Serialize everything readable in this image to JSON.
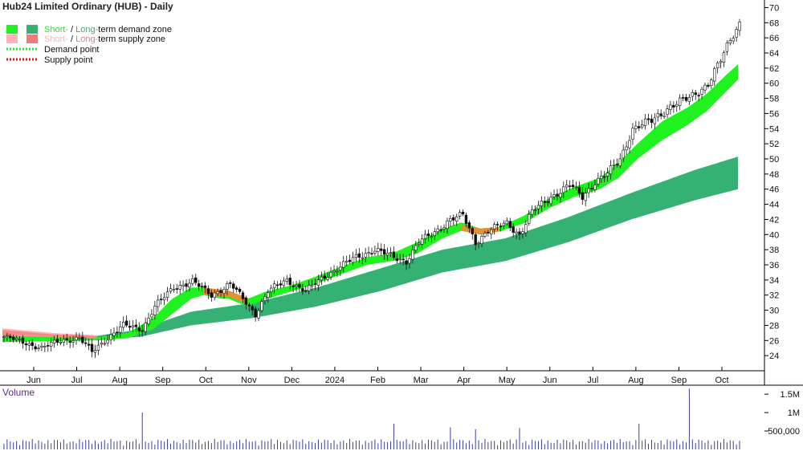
{
  "chart_data": {
    "type": "candlestick",
    "title": "Hub24 Limited Ordinary (HUB) - Daily",
    "legend": {
      "demand": {
        "short": "Short-",
        "sep": " / ",
        "long": "Long-",
        "rest": "term demand zone"
      },
      "supply": {
        "short": "Short-",
        "sep": " / ",
        "long": "Long-",
        "rest": "term supply zone"
      },
      "demand_point": "Demand point",
      "supply_point": "Supply point",
      "placement": "top-left"
    },
    "x_ticks": [
      "Jun",
      "Jul",
      "Aug",
      "Sep",
      "Oct",
      "Nov",
      "Dec",
      "2024",
      "Feb",
      "Mar",
      "Apr",
      "May",
      "Jun",
      "Jul",
      "Aug",
      "Sep",
      "Oct"
    ],
    "y_ticks": [
      24,
      26,
      28,
      30,
      32,
      34,
      36,
      38,
      40,
      42,
      44,
      46,
      48,
      50,
      52,
      54,
      56,
      58,
      60,
      62,
      64,
      66,
      68,
      70
    ],
    "ylim": [
      22,
      71
    ],
    "price_path": [
      [
        0,
        26.5
      ],
      [
        6,
        25.8
      ],
      [
        12,
        25
      ],
      [
        18,
        26
      ],
      [
        24,
        26.3
      ],
      [
        28,
        24.5
      ],
      [
        32,
        26
      ],
      [
        38,
        28
      ],
      [
        44,
        27.5
      ],
      [
        48,
        30.5
      ],
      [
        54,
        33
      ],
      [
        60,
        33.8
      ],
      [
        66,
        32
      ],
      [
        72,
        33.5
      ],
      [
        76,
        31.5
      ],
      [
        80,
        29.5
      ],
      [
        84,
        32.5
      ],
      [
        90,
        34
      ],
      [
        96,
        32.5
      ],
      [
        102,
        34.5
      ],
      [
        108,
        36
      ],
      [
        112,
        37
      ],
      [
        118,
        38
      ],
      [
        124,
        37
      ],
      [
        128,
        36.5
      ],
      [
        132,
        39
      ],
      [
        136,
        40
      ],
      [
        142,
        42
      ],
      [
        146,
        42.5
      ],
      [
        150,
        39
      ],
      [
        154,
        40.5
      ],
      [
        160,
        41.5
      ],
      [
        164,
        40
      ],
      [
        168,
        43
      ],
      [
        174,
        45
      ],
      [
        180,
        46.5
      ],
      [
        184,
        45
      ],
      [
        188,
        47
      ],
      [
        192,
        48
      ],
      [
        196,
        50
      ],
      [
        200,
        54
      ],
      [
        206,
        55
      ],
      [
        212,
        57
      ],
      [
        218,
        58
      ],
      [
        224,
        60
      ],
      [
        228,
        63
      ],
      [
        232,
        66.5
      ],
      [
        234,
        68
      ]
    ],
    "short_demand_zone": [
      [
        0,
        25.8,
        26.6
      ],
      [
        30,
        26,
        26.4
      ],
      [
        40,
        26.3,
        27
      ],
      [
        48,
        27.5,
        29
      ],
      [
        54,
        29.5,
        31.5
      ],
      [
        60,
        31.5,
        33
      ],
      [
        64,
        32,
        33
      ],
      [
        70,
        31.5,
        32.5
      ],
      [
        72,
        31.5,
        32.5
      ],
      [
        78,
        30.5,
        31.5
      ],
      [
        84,
        31.5,
        32.5
      ],
      [
        92,
        32.5,
        33.3
      ],
      [
        100,
        33.5,
        34.5
      ],
      [
        108,
        34.8,
        35.8
      ],
      [
        116,
        36,
        37
      ],
      [
        124,
        36.5,
        37.5
      ],
      [
        132,
        37.5,
        39
      ],
      [
        140,
        39.5,
        40.8
      ],
      [
        146,
        40.5,
        41.6
      ],
      [
        152,
        40,
        40.8
      ],
      [
        158,
        40.4,
        41
      ],
      [
        166,
        41.5,
        42.5
      ],
      [
        174,
        43.5,
        44.8
      ],
      [
        182,
        45,
        46.3
      ],
      [
        190,
        46,
        47.5
      ],
      [
        196,
        47.5,
        49.5
      ],
      [
        202,
        50,
        52
      ],
      [
        210,
        52.5,
        55
      ],
      [
        218,
        54.5,
        56.8
      ],
      [
        224,
        56.3,
        58.6
      ],
      [
        230,
        58.8,
        61
      ],
      [
        234,
        60.5,
        62.5
      ]
    ],
    "long_demand_zone": [
      [
        30,
        26.2,
        26.6
      ],
      [
        44,
        26.5,
        27.5
      ],
      [
        60,
        28,
        29.8
      ],
      [
        80,
        29,
        31
      ],
      [
        100,
        30.5,
        33
      ],
      [
        120,
        32.5,
        35.5
      ],
      [
        140,
        35,
        38
      ],
      [
        160,
        36.5,
        39.5
      ],
      [
        180,
        39,
        42.3
      ],
      [
        200,
        42,
        45.5
      ],
      [
        220,
        44.5,
        48.5
      ],
      [
        234,
        46,
        50.3
      ]
    ],
    "short_supply_segments": [
      [
        [
          0,
          26.6,
          27.4
        ],
        [
          16,
          26.4,
          26.8
        ],
        [
          30,
          26.2,
          26.6
        ]
      ],
      [
        [
          64,
          32,
          33
        ],
        [
          72,
          31.8,
          32.6
        ],
        [
          78,
          30.8,
          31.6
        ]
      ],
      [
        [
          146,
          40.5,
          41.3
        ],
        [
          152,
          40,
          40.8
        ],
        [
          158,
          40.4,
          41
        ]
      ]
    ],
    "long_supply_segment": [
      [
        0,
        26.8,
        27.6
      ],
      [
        16,
        26.6,
        27
      ],
      [
        30,
        26.3,
        26.7
      ]
    ],
    "volume": {
      "label": "Volume",
      "y_ticks": [
        "1.5M",
        "1M",
        "500,000"
      ],
      "y_tick_values": [
        1500000,
        1000000,
        500000
      ],
      "ylim": [
        0,
        1700000
      ],
      "base": 150000,
      "spikes": [
        [
          44,
          1000000
        ],
        [
          124,
          700000
        ],
        [
          142,
          600000
        ],
        [
          150,
          550000
        ],
        [
          164,
          580000
        ],
        [
          202,
          700000
        ],
        [
          218,
          1650000
        ]
      ]
    },
    "colors": {
      "short_demand": "#1ff21f",
      "long_demand": "#35b174",
      "short_supply": "#ffb3b3",
      "long_supply": "#f07a7a",
      "supply_overlap": "#f08a35",
      "demand_point": "#2ee62e",
      "supply_point": "#e01515",
      "candle": "#111111",
      "volume": "#3a3f9e"
    }
  }
}
